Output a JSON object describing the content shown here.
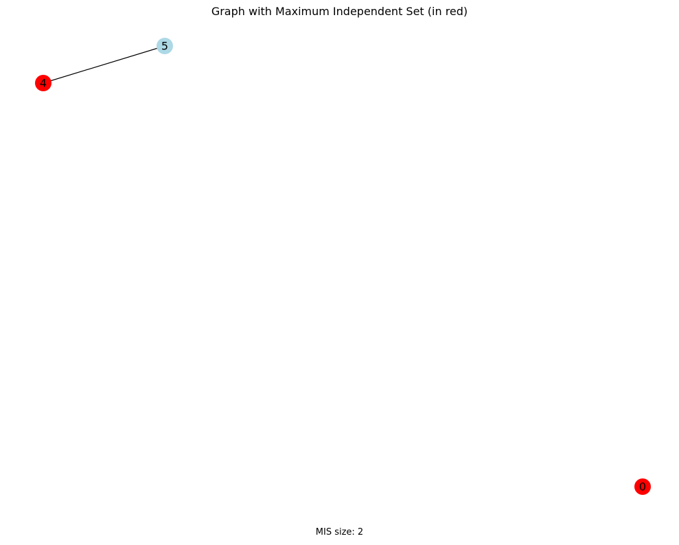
{
  "title": "Graph with Maximum Independent Set (in red)",
  "caption": "MIS size: 2",
  "colors": {
    "mis_node": "#ff0000",
    "other_node": "#add8e6",
    "edge": "#000000"
  },
  "graph": {
    "nodes": [
      {
        "id": "5",
        "label": "5",
        "in_mis": false
      },
      {
        "id": "4",
        "label": "4",
        "in_mis": true
      },
      {
        "id": "0",
        "label": "0",
        "in_mis": true
      }
    ],
    "edges": [
      {
        "source": "4",
        "target": "5"
      }
    ]
  }
}
